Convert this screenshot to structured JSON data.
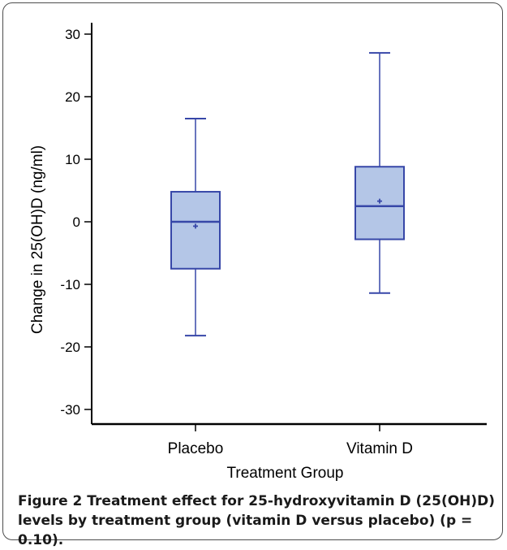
{
  "figure": {
    "label": "Figure 2",
    "caption": "Treatment effect for 25-hydroxyvitamin D (25(OH)D) levels by treatment group (vitamin D versus placebo) (p = 0.10)."
  },
  "colors": {
    "box_fill": "#b4c6e7",
    "box_stroke": "#3747a8",
    "axis": "#000000"
  },
  "chart_data": {
    "type": "box",
    "title": "",
    "xlabel": "Treatment Group",
    "ylabel": "Change in 25(OH)D (ng/ml)",
    "ylim": [
      -32,
      32
    ],
    "yticks": [
      -30,
      -20,
      -10,
      0,
      10,
      20,
      30
    ],
    "grid": false,
    "categories": [
      "Placebo",
      "Vitamin D"
    ],
    "boxes": [
      {
        "name": "Placebo",
        "min": -18.2,
        "q1": -7.5,
        "median": 0.0,
        "mean": -0.7,
        "q3": 4.8,
        "max": 16.5
      },
      {
        "name": "Vitamin D",
        "min": -11.4,
        "q1": -2.8,
        "median": 2.5,
        "mean": 3.3,
        "q3": 8.8,
        "max": 27.0
      }
    ]
  }
}
